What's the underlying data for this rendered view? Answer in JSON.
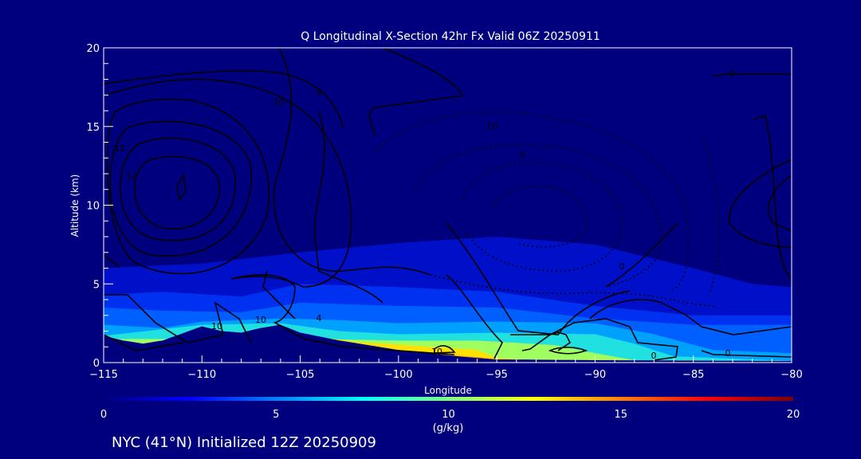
{
  "chart_data": {
    "type": "heatmap",
    "title": "Q Longitudinal X-Section 42hr  Fx Valid 06Z 20250911",
    "xlabel": "Longitude",
    "ylabel": "Altitude (km)",
    "xlim": [
      -115,
      -80
    ],
    "ylim": [
      0,
      20
    ],
    "x_ticks": [
      -115,
      -110,
      -105,
      -100,
      -95,
      -90,
      -85,
      -80
    ],
    "x_tick_labels": [
      "−115",
      "−110",
      "−105",
      "−100",
      "−95",
      "−90",
      "−85",
      "−80"
    ],
    "y_ticks": [
      0,
      5,
      10,
      15,
      20
    ],
    "y_tick_labels": [
      "0",
      "5",
      "10",
      "15",
      "20"
    ],
    "colorbar": {
      "label": "(g/kg)",
      "range": [
        0,
        20
      ],
      "ticks": [
        0,
        5,
        10,
        15,
        20
      ],
      "tick_labels": [
        "0",
        "5",
        "10",
        "15",
        "20"
      ]
    },
    "fill_levels_gkg": [
      1,
      3,
      5,
      7,
      9,
      11,
      12.5,
      14
    ],
    "contour_labels": [
      "10",
      "10",
      "10",
      "4",
      "10",
      "0",
      "0",
      "0",
      "0",
      "0",
      "4",
      "10",
      "10",
      "10"
    ],
    "grid": false,
    "legend": "colorbar-bottom"
  },
  "footer": "NYC (41°N) Initialized 12Z 20250909"
}
